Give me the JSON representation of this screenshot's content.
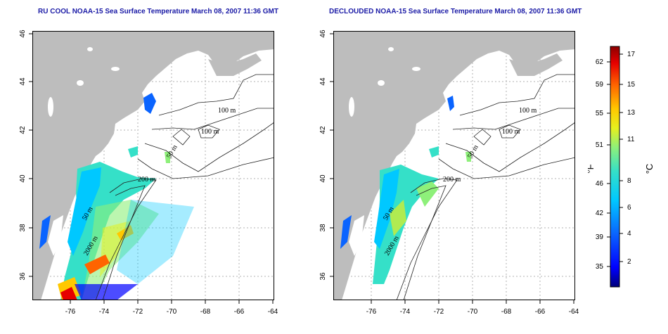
{
  "titles": [
    "RU COOL NOAA-15 Sea Surface Temperature March 08, 2007 11:36 GMT",
    "DECLOUDED NOAA-15 Sea Surface Temperature March 08, 2007 11:36 GMT"
  ],
  "axes": {
    "lon_ticks": [
      "-76",
      "-74",
      "-72",
      "-70",
      "-68",
      "-66",
      "-64"
    ],
    "lat_ticks": [
      "36",
      "38",
      "40",
      "42",
      "44",
      "46"
    ]
  },
  "contour_labels": [
    "100 m",
    "100 m",
    "50 m",
    "200 m",
    "50 m",
    "2000 m"
  ],
  "colorbar": {
    "fahrenheit_ticks": [
      "62",
      "59",
      "55",
      "51",
      "46",
      "42",
      "39",
      "35"
    ],
    "celsius_ticks": [
      "17",
      "15",
      "13",
      "11",
      "8",
      "6",
      "4",
      "2"
    ],
    "unit_f": "°F",
    "unit_c": "°C",
    "colors": [
      "#00007a",
      "#0000ff",
      "#0a64ff",
      "#00c8ff",
      "#35e0c8",
      "#8ef07a",
      "#e6f01e",
      "#ffc800",
      "#ff6400",
      "#e60000",
      "#8b0000"
    ]
  },
  "colors": {
    "land": "#bdbdbd",
    "grid": "#b0b0b0",
    "title": "#1a1aa6"
  }
}
